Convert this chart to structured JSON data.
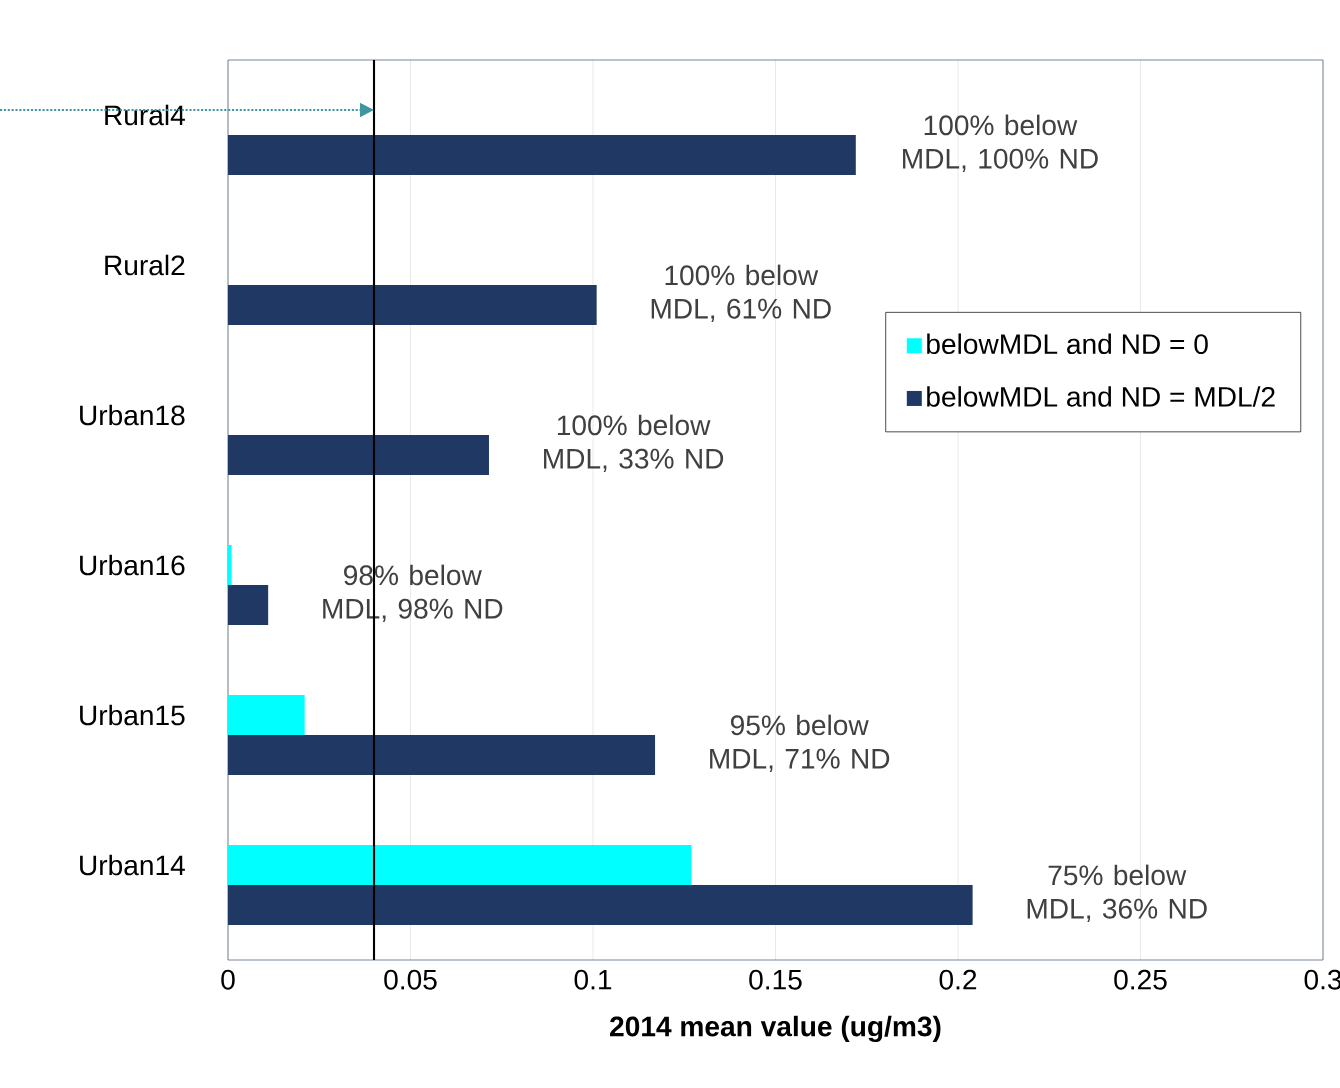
{
  "chart_data": {
    "type": "bar",
    "orientation": "horizontal",
    "categories": [
      "Rural4",
      "Rural2",
      "Urban18",
      "Urban16",
      "Urban15",
      "Urban14"
    ],
    "series": [
      {
        "name": "belowMDL and ND = 0",
        "color": "#00ffff",
        "values": [
          0,
          0,
          0,
          0.001,
          0.021,
          0.127
        ]
      },
      {
        "name": "belowMDL and ND = MDL/2",
        "color": "#203864",
        "values": [
          0.172,
          0.101,
          0.0715,
          0.011,
          0.117,
          0.204
        ]
      }
    ],
    "annotations": [
      {
        "text": "100% below MDL, 100% ND",
        "x": 0.172,
        "y": "Rural4"
      },
      {
        "text": "100% below MDL, 61% ND",
        "x": 0.101,
        "y": "Rural2"
      },
      {
        "text": "100% below MDL, 33% ND",
        "x": 0.0715,
        "y": "Urban18"
      },
      {
        "text": "98% below MDL, 98% ND",
        "x": 0.011,
        "y": "Urban16"
      },
      {
        "text": "95% below MDL, 71% ND",
        "x": 0.117,
        "y": "Urban15"
      },
      {
        "text": "75% below MDL, 36% ND",
        "x": 0.204,
        "y": "Urban14"
      }
    ],
    "xlim": [
      0,
      0.3
    ],
    "xticks": [
      0,
      0.05,
      0.1,
      0.15,
      0.2,
      0.25,
      0.3
    ],
    "xlabel": "2014 mean value (ug/m3)",
    "ref_lines": [
      {
        "axis": "x",
        "value": 0.04,
        "color": "#000000"
      }
    ],
    "grid": "x",
    "legend": "right"
  }
}
